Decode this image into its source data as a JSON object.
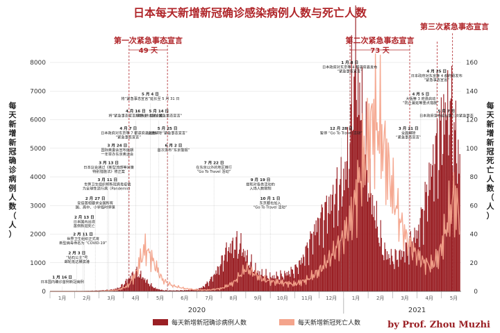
{
  "chart_data": {
    "type": "bar+line",
    "title": "日本每天新增新冠确诊感染病例人数与死亡人数",
    "left_axis_label": "每天新增新冠确诊病例人数（人）",
    "right_axis_label": "每天新增新冠死亡人数（人）",
    "left_ticks": [
      "0",
      "1000",
      "2000",
      "3000",
      "4000",
      "5000",
      "6000",
      "7000",
      "8000"
    ],
    "right_ticks": [
      "0",
      "20",
      "40",
      "60",
      "80",
      "100",
      "120",
      "140",
      "160"
    ],
    "ylim_left": [
      0,
      8000
    ],
    "ylim_right": [
      0,
      160
    ],
    "months": [
      "1月",
      "2月",
      "3月",
      "4月",
      "5月",
      "6月",
      "7月",
      "8月",
      "9月",
      "10月",
      "11月",
      "12月",
      "1月",
      "2月",
      "3月",
      "4月",
      "5月"
    ],
    "years": [
      "2020",
      "2021"
    ],
    "legend": [
      {
        "label": "每天新增新冠确诊病例人数",
        "color": "#9a1f24"
      },
      {
        "label": "每天新增新冠死亡人数",
        "color": "#f4a48c"
      }
    ],
    "emergency_periods": [
      {
        "label": "第一次紧急事态宣言",
        "days": "49 天",
        "start_month": 3.23,
        "end_month": 4.8
      },
      {
        "label": "第二次紧急事态宣言",
        "days": "73 天",
        "start_month": 12.26,
        "end_month": 14.7
      },
      {
        "label": "第三次紧急事态宣言",
        "days": "",
        "start_month": 15.82,
        "end_month": 16.45
      }
    ],
    "cases_series": {
      "name": "每天新增新冠确诊病例人数",
      "month_index": [
        0,
        1,
        2,
        2.5,
        2.8,
        3.0,
        3.2,
        3.4,
        3.5,
        3.7,
        3.9,
        4.1,
        4.3,
        4.6,
        5.0,
        5.5,
        5.9,
        6.2,
        6.5,
        6.8,
        7.0,
        7.2,
        7.5,
        7.8,
        8.0,
        8.3,
        8.6,
        9.0,
        9.5,
        10.0,
        10.3,
        10.6,
        10.9,
        11.2,
        11.5,
        11.8,
        12.0,
        12.2,
        12.4,
        12.6,
        12.8,
        13.0,
        13.3,
        13.6,
        14.0,
        14.3,
        14.6,
        15.0,
        15.3,
        15.6,
        15.9,
        16.1,
        16.3,
        16.5,
        16.7
      ],
      "values": [
        0,
        5,
        30,
        60,
        120,
        250,
        450,
        600,
        650,
        550,
        380,
        220,
        100,
        40,
        30,
        40,
        60,
        130,
        350,
        700,
        1000,
        1400,
        1600,
        1550,
        1200,
        800,
        600,
        500,
        550,
        750,
        1100,
        1700,
        2300,
        2700,
        3100,
        3500,
        3900,
        4800,
        7800,
        7000,
        5500,
        3800,
        2500,
        1400,
        1100,
        1250,
        1500,
        2000,
        3000,
        4300,
        5300,
        6000,
        6400,
        5500,
        4500
      ]
    },
    "deaths_series": {
      "name": "每天新增新冠死亡人数",
      "month_index": [
        0,
        2,
        2.8,
        3.2,
        3.5,
        3.7,
        3.9,
        4.1,
        4.3,
        4.6,
        5.0,
        5.5,
        6.0,
        6.5,
        7.0,
        7.5,
        7.8,
        8.0,
        8.3,
        8.6,
        9.0,
        9.5,
        10.0,
        10.5,
        11.0,
        11.5,
        12.0,
        12.3,
        12.6,
        12.9,
        13.2,
        13.5,
        13.8,
        14.0,
        14.3,
        14.6,
        15.0,
        15.3,
        15.6,
        15.9,
        16.2,
        16.5,
        16.7
      ],
      "values": [
        0,
        0,
        1,
        4,
        12,
        22,
        30,
        25,
        18,
        8,
        4,
        2,
        1,
        1,
        2,
        6,
        12,
        16,
        13,
        9,
        7,
        6,
        5,
        8,
        14,
        25,
        38,
        50,
        75,
        95,
        120,
        112,
        88,
        68,
        50,
        35,
        25,
        20,
        18,
        25,
        45,
        65,
        55
      ]
    },
    "annotations": [
      {
        "date": "1 月 16 日",
        "text": "日本国内确诊首例新冠病例",
        "m": 0.5,
        "v": 450
      },
      {
        "date": "2 月 3 日",
        "text": "“钻石公主”号|邮轮抵达横滨港",
        "m": 1.1,
        "v": 1300
      },
      {
        "date": "2 月 11 日",
        "text": "世界卫生组织正式将|新型病毒命名为 “COVID-19”",
        "m": 1.35,
        "v": 1950
      },
      {
        "date": "2 月 13 日",
        "text": "日本国内出现|首例新冠死亡",
        "m": 1.4,
        "v": 2550
      },
      {
        "date": "2 月 27 日",
        "text": "安倍首相要求全国所有|国、高中、小学临时停课",
        "m": 1.85,
        "v": 3200
      },
      {
        "date": "3 月 11 日",
        "text": "世界卫生组织称新冠病毒疫情|为全球性流行病（Pandemic）",
        "m": 2.35,
        "v": 3850
      },
      {
        "date": "3 月 13 日",
        "text": "日本议会通过《新型流感等对策|特别措施法》修正案",
        "m": 2.4,
        "v": 4450
      },
      {
        "date": "3 月 24 日",
        "text": "国际奥委会宣布延期|一年举办东京奥运会",
        "m": 2.75,
        "v": 5050
      },
      {
        "date": "4 月 7 日",
        "text": "日本政府对东京等 7 都道府县发布|“紧急事态宣言”",
        "m": 3.2,
        "v": 5650
      },
      {
        "date": "4 月 16 日",
        "text": "将“紧急事态宣言”对象扩大到全国",
        "m": 3.5,
        "v": 6250
      },
      {
        "date": "5 月 4 日",
        "text": "将“紧急事态宣言”延长至 5 月 31 日",
        "m": 4.1,
        "v": 6850
      },
      {
        "date": "5 月 14 日",
        "text": "解除 39 县的“紧急事态宣言”",
        "m": 4.45,
        "v": 6250
      },
      {
        "date": "5 月 25 日",
        "text": "全面解除“紧急事态宣言”",
        "m": 4.8,
        "v": 5650
      },
      {
        "date": "6 月 2 日",
        "text": "首次发布“东京警报”",
        "m": 5.05,
        "v": 5050
      },
      {
        "date": "7 月 22 日",
        "text": "在东京以外的地区推行|“Go To Travel 活动”",
        "m": 6.7,
        "v": 4450
      },
      {
        "date": "9 月 19 日",
        "text": "提和对各类活动的|入场人数限制",
        "m": 8.6,
        "v": 3850
      },
      {
        "date": "10 月 1 日",
        "text": "东京都也加入|“Go To Travel 活动”",
        "m": 9.0,
        "v": 3200
      },
      {
        "date": "12 月 28 日",
        "text": "暂停 “Go To Travel 活动”",
        "m": 11.9,
        "v": 5650
      },
      {
        "date": "1 月 8 日",
        "text": "日本政府对东京等 4 都道府县发布|“紧急事态宣言”",
        "m": 12.25,
        "v": 7950
      },
      {
        "date": "3 月 21 日",
        "text": "全面解除|“紧急事态宣言”",
        "m": 14.65,
        "v": 5650
      },
      {
        "date": "4 月 5 日",
        "text": "大阪等 3 府县启动|“防止蔓延等重点措施”",
        "m": 15.15,
        "v": 6850
      },
      {
        "date": "4 月 25 日",
        "text": "日本政府对东京等 4 都府县发布|“紧急事态宣言”",
        "m": 15.8,
        "v": 7650
      },
      {
        "date": "5 月 7 日",
        "text": "日本政府宣布延长第三次紧急事态",
        "m": 16.2,
        "v": 6250
      }
    ]
  },
  "credit": "by Prof. Zhou Muzhi"
}
